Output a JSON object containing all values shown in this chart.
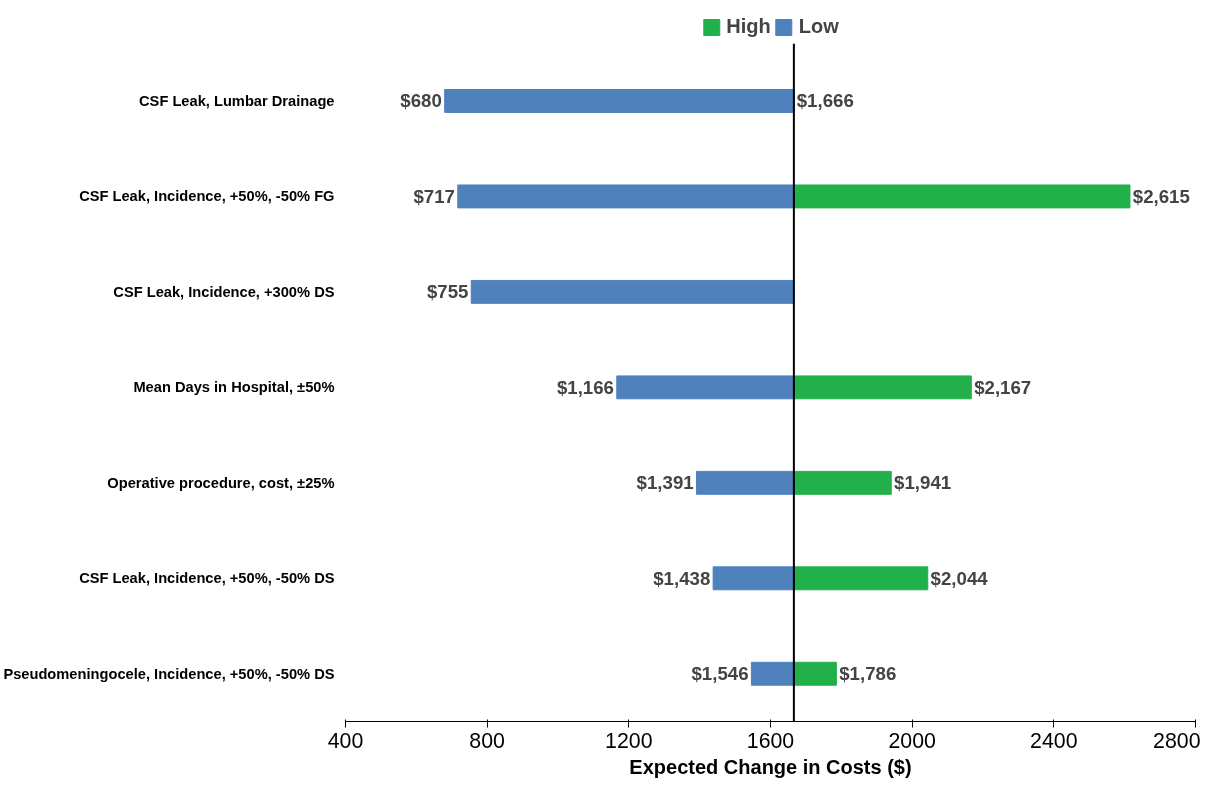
{
  "chart_data": {
    "type": "bar",
    "orientation": "horizontal",
    "xlabel": "Expected Change in Costs ($)",
    "categories": [
      "CSF Leak, Lumbar Drainage",
      "CSF Leak, Incidence, +50%, -50% FG",
      "CSF Leak, Incidence, +300% DS",
      "Mean Days in Hospital, ±50%",
      "Operative procedure, cost, ±25%",
      "CSF Leak, Incidence, +50%, -50% DS",
      "Pseudomeningocele, Incidence, +50%, -50% DS"
    ],
    "series": [
      {
        "name": "High",
        "color": "#22b04b",
        "base": [
          1666,
          1666,
          null,
          1666,
          1666,
          1666,
          1666
        ],
        "values": [
          0,
          949,
          null,
          501,
          275,
          378,
          120
        ],
        "value_labels": [
          "$1,666",
          "$2,615",
          null,
          "$2,167",
          "$1,941",
          "$2,044",
          "$1,786"
        ]
      },
      {
        "name": "Low",
        "color": "#4f81bd",
        "base": [
          1666,
          1666,
          1666,
          1666,
          1666,
          1666,
          1666
        ],
        "values": [
          -986,
          -949,
          -911,
          -500,
          -275,
          -228,
          -120
        ],
        "value_labels": [
          "$680",
          "$717",
          "$755",
          "$1,166",
          "$1,391",
          "$1,438",
          "$1,546"
        ]
      }
    ],
    "xlim": [
      400,
      2800
    ],
    "xticks": [
      400,
      800,
      1200,
      1600,
      2000,
      2400,
      2800
    ],
    "ref_lines": [
      {
        "axis": "x",
        "value": 1666,
        "color": "#000000"
      }
    ],
    "grid": false,
    "legend": "top"
  }
}
